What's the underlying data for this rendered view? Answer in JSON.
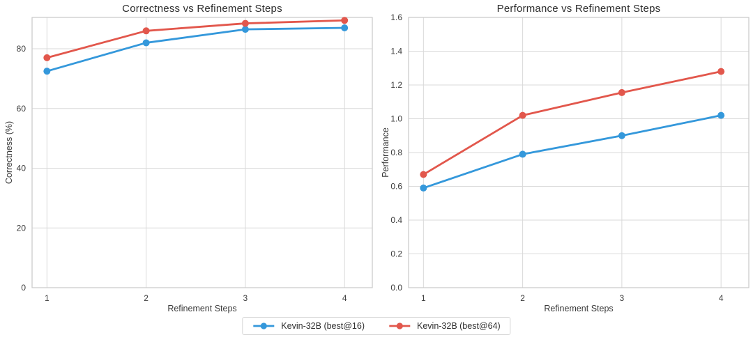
{
  "figure": {
    "background": "#ffffff"
  },
  "colors": {
    "blue": "#3498db",
    "red": "#e2574c",
    "grid": "#d9d9d9",
    "frame": "#c9c9c9",
    "tick_text": "#3d3d3d",
    "title_text": "#2e2e2e"
  },
  "legend": {
    "entries": [
      {
        "label": "Kevin-32B (best@16)",
        "color": "#3498db",
        "marker": "line-circle"
      },
      {
        "label": "Kevin-32B (best@64)",
        "color": "#e2574c",
        "marker": "line-circle"
      }
    ]
  },
  "chart_data": [
    {
      "type": "line",
      "title": "Correctness vs Refinement Steps",
      "xlabel": "Refinement Steps",
      "ylabel": "Correctness (%)",
      "x": [
        1,
        2,
        3,
        4
      ],
      "xlim": [
        0.85,
        4.28
      ],
      "ylim": [
        0,
        90.5
      ],
      "xticks": [
        1,
        2,
        3,
        4
      ],
      "xtick_labels": [
        "1",
        "2",
        "3",
        "4"
      ],
      "yticks": [
        0,
        20,
        40,
        60,
        80
      ],
      "ytick_labels": [
        "0",
        "20",
        "40",
        "60",
        "80"
      ],
      "grid": true,
      "legend_position": "figure-bottom",
      "series": [
        {
          "name": "Kevin-32B (best@16)",
          "color": "#3498db",
          "values": [
            72.5,
            82,
            86.5,
            87
          ]
        },
        {
          "name": "Kevin-32B (best@64)",
          "color": "#e2574c",
          "values": [
            77,
            86,
            88.5,
            89.5
          ]
        }
      ]
    },
    {
      "type": "line",
      "title": "Performance vs Refinement Steps",
      "xlabel": "Refinement Steps",
      "ylabel": "Performance",
      "x": [
        1,
        2,
        3,
        4
      ],
      "xlim": [
        0.85,
        4.28
      ],
      "ylim": [
        0,
        1.6
      ],
      "xticks": [
        1,
        2,
        3,
        4
      ],
      "xtick_labels": [
        "1",
        "2",
        "3",
        "4"
      ],
      "yticks": [
        0,
        0.2,
        0.4,
        0.6,
        0.8,
        1.0,
        1.2,
        1.4,
        1.6
      ],
      "ytick_labels": [
        "0.0",
        "0.2",
        "0.4",
        "0.6",
        "0.8",
        "1.0",
        "1.2",
        "1.4",
        "1.6"
      ],
      "grid": true,
      "legend_position": "figure-bottom",
      "series": [
        {
          "name": "Kevin-32B (best@16)",
          "color": "#3498db",
          "values": [
            0.59,
            0.79,
            0.9,
            1.02
          ]
        },
        {
          "name": "Kevin-32B (best@64)",
          "color": "#e2574c",
          "values": [
            0.67,
            1.02,
            1.155,
            1.28
          ]
        }
      ]
    }
  ]
}
